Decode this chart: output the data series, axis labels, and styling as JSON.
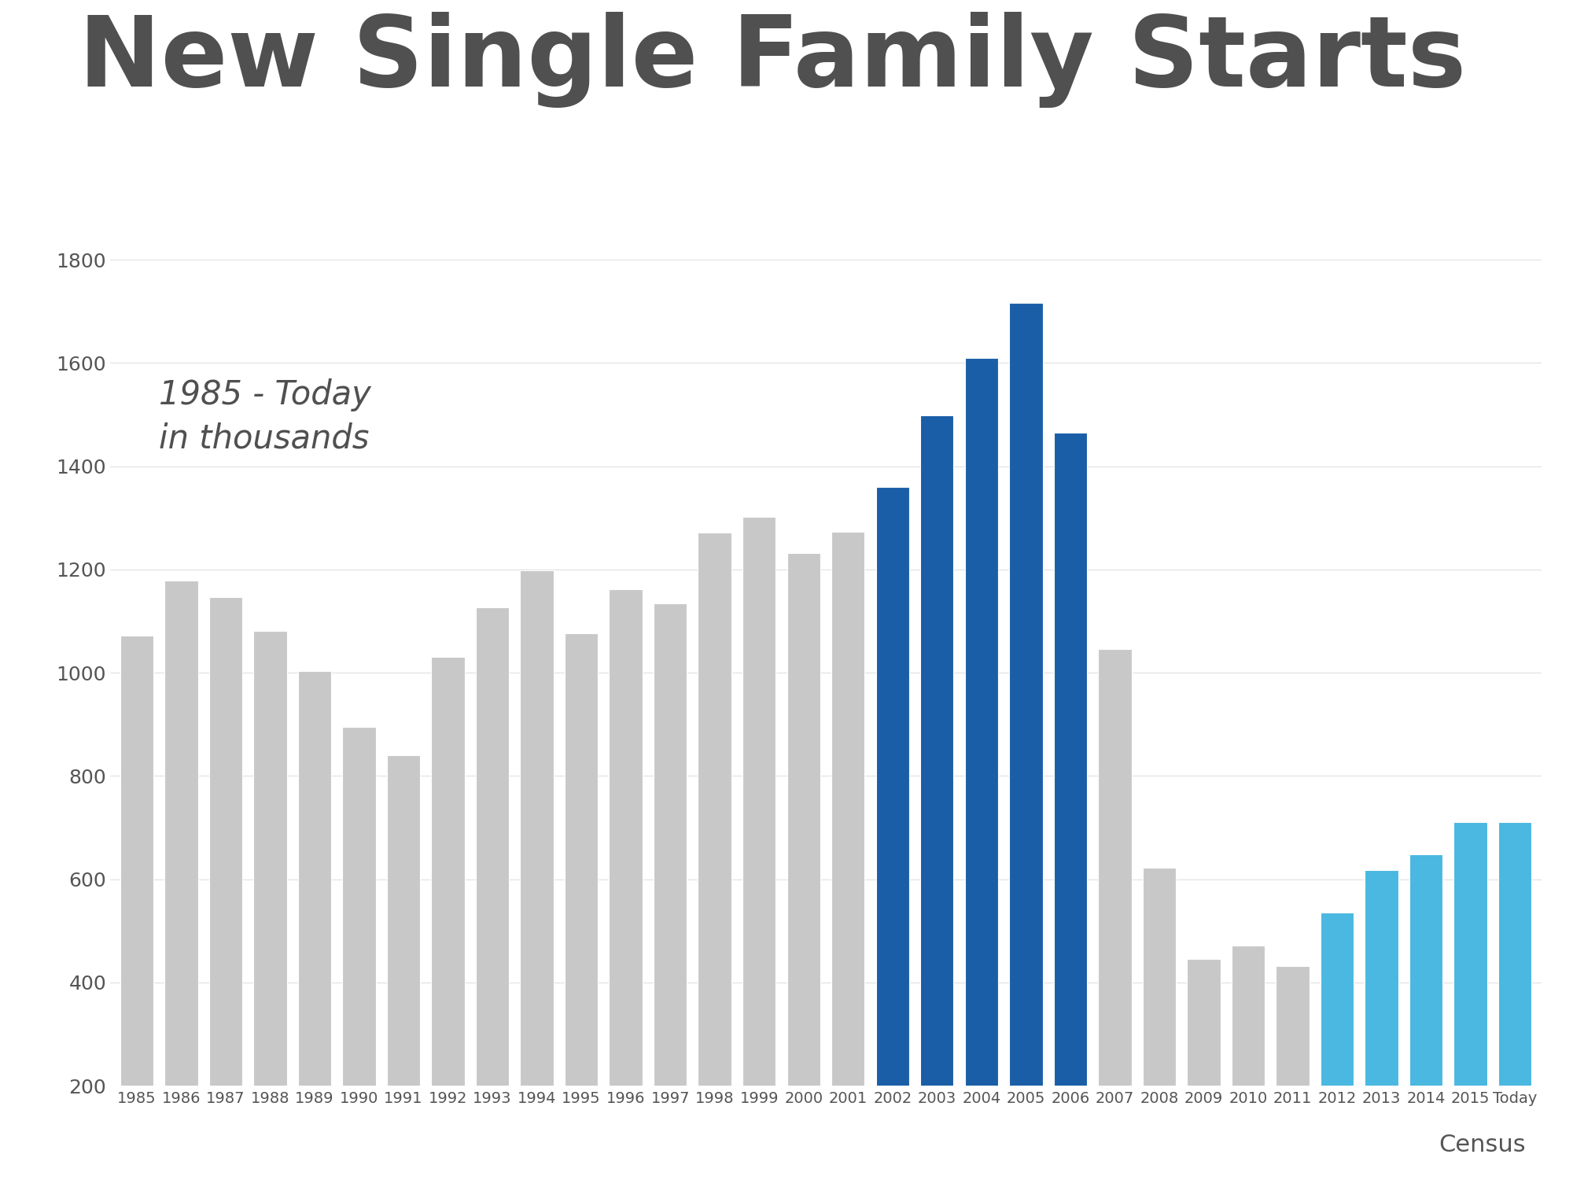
{
  "title": "New Single Family Starts",
  "subtitle": "1985 - Today\nin thousands",
  "source": "Census",
  "background_color": "#ffffff",
  "title_color": "#505050",
  "subtitle_color": "#505050",
  "source_color": "#555555",
  "years": [
    "1985",
    "1986",
    "1987",
    "1988",
    "1989",
    "1990",
    "1991",
    "1992",
    "1993",
    "1994",
    "1995",
    "1996",
    "1997",
    "1998",
    "1999",
    "2000",
    "2001",
    "2002",
    "2003",
    "2004",
    "2005",
    "2006",
    "2007",
    "2008",
    "2009",
    "2010",
    "2011",
    "2012",
    "2013",
    "2014",
    "2015",
    "Today"
  ],
  "values": [
    1072,
    1179,
    1146,
    1081,
    1003,
    895,
    840,
    1030,
    1126,
    1198,
    1076,
    1161,
    1134,
    1271,
    1302,
    1231,
    1273,
    1359,
    1499,
    1610,
    1716,
    1465,
    1046,
    622,
    445,
    471,
    431,
    535,
    618,
    648,
    710,
    710
  ],
  "colors": {
    "gray": "#c8c8c8",
    "dark_blue": "#1a5ea8",
    "light_blue": "#4ab8e0"
  },
  "bar_colors": [
    "gray",
    "gray",
    "gray",
    "gray",
    "gray",
    "gray",
    "gray",
    "gray",
    "gray",
    "gray",
    "gray",
    "gray",
    "gray",
    "gray",
    "gray",
    "gray",
    "gray",
    "dark_blue",
    "dark_blue",
    "dark_blue",
    "dark_blue",
    "dark_blue",
    "gray",
    "gray",
    "gray",
    "gray",
    "gray",
    "light_blue",
    "light_blue",
    "light_blue",
    "light_blue",
    "light_blue"
  ],
  "ylim": [
    200,
    1800
  ],
  "yticks": [
    200,
    400,
    600,
    800,
    1000,
    1200,
    1400,
    1600,
    1800
  ],
  "title_fontsize": 90,
  "subtitle_fontsize": 30,
  "source_fontsize": 22,
  "xtick_fontsize": 14,
  "ytick_fontsize": 18
}
